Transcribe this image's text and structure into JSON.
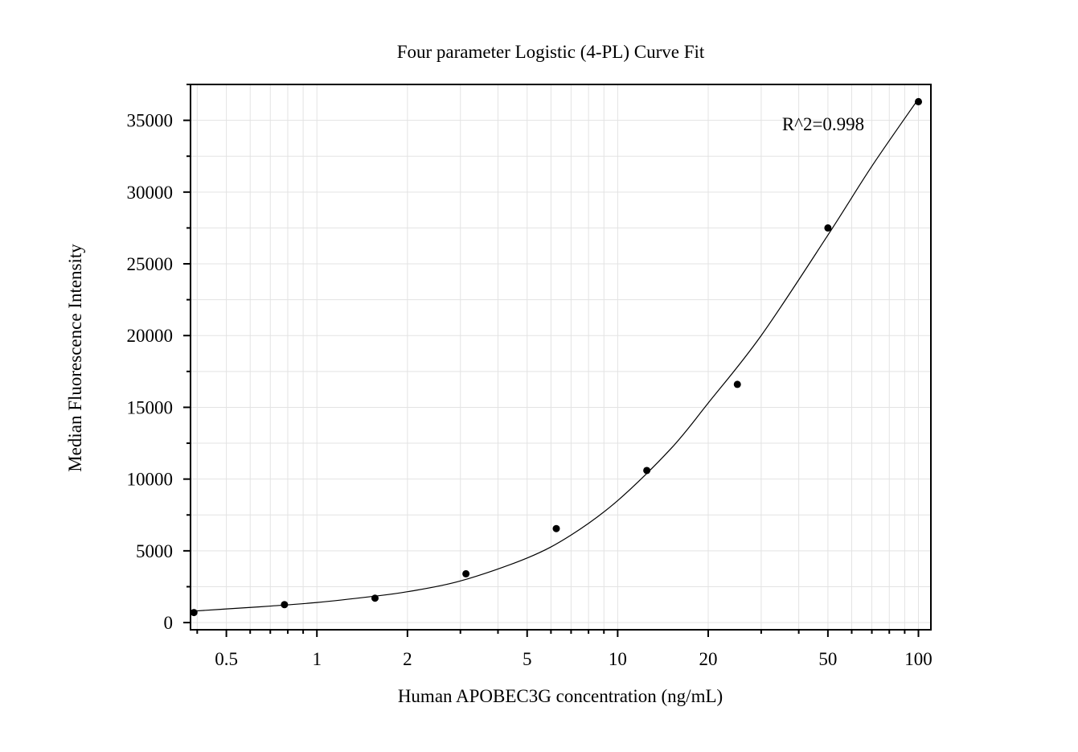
{
  "chart_data": {
    "type": "scatter",
    "title": "Four parameter Logistic (4-PL) Curve Fit",
    "xlabel": "Human APOBEC3G concentration (ng/mL)",
    "ylabel": "Median Fluorescence Intensity",
    "x_scale": "log",
    "xlim": [
      0.38,
      110
    ],
    "ylim": [
      -500,
      37500
    ],
    "x_ticks": [
      0.5,
      1,
      2,
      5,
      10,
      20,
      50,
      100
    ],
    "x_tick_labels": [
      "0.5",
      "1",
      "2",
      "5",
      "10",
      "20",
      "50",
      "100"
    ],
    "y_ticks": [
      0,
      5000,
      10000,
      15000,
      20000,
      25000,
      30000,
      35000
    ],
    "y_tick_labels": [
      "0",
      "5000",
      "10000",
      "15000",
      "20000",
      "25000",
      "30000",
      "35000"
    ],
    "grid": true,
    "annotation": "R^2=0.998",
    "series": [
      {
        "x": [
          0.39,
          0.78,
          1.56,
          3.13,
          6.25,
          12.5,
          25,
          50,
          100
        ],
        "y": [
          700,
          1250,
          1700,
          3400,
          6550,
          10600,
          16600,
          27500,
          36300
        ]
      }
    ],
    "fit_curve": {
      "x": [
        0.39,
        0.5,
        0.7,
        1,
        1.5,
        2,
        3,
        5,
        7,
        10,
        15,
        20,
        30,
        50,
        70,
        100
      ],
      "y": [
        800,
        950,
        1150,
        1400,
        1800,
        2150,
        2900,
        4500,
        6100,
        8500,
        12100,
        15300,
        20000,
        27000,
        31800,
        36500
      ]
    },
    "colors": {
      "points": "#000000",
      "curve": "#000000",
      "grid": "#e3e3e3",
      "axes": "#000000"
    }
  }
}
